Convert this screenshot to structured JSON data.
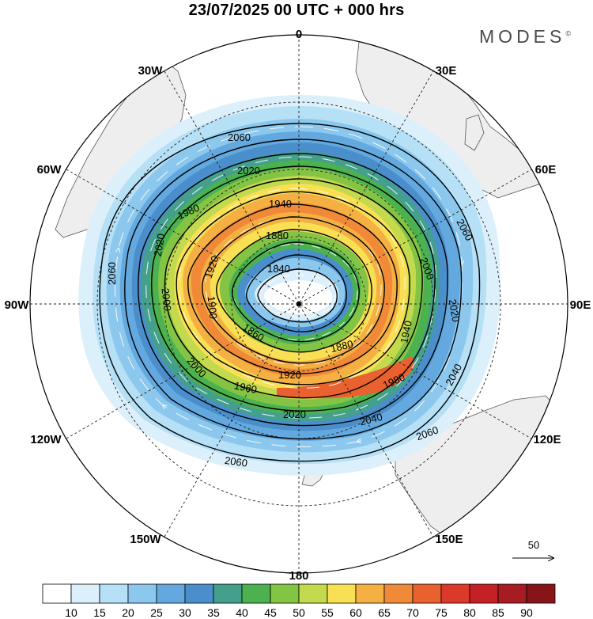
{
  "title": "23/07/2025  00 UTC  + 000 hrs",
  "brand": "MODES",
  "brand_mark": "©",
  "colors": {
    "background": "#ffffff",
    "land": "#eeeeee",
    "coast": "#555555",
    "contour": "#000000",
    "wind_arrow": "#ffffff"
  },
  "longitude_labels": {
    "lon_0": "0",
    "lon_30E": "30E",
    "lon_60E": "60E",
    "lon_90E": "90E",
    "lon_120E": "120E",
    "lon_150E": "150E",
    "lon_180": "180",
    "lon_150W": "150W",
    "lon_120W": "120W",
    "lon_90W": "90W",
    "lon_60W": "60W",
    "lon_30W": "30W"
  },
  "contour_labels": {
    "c2060": "2060",
    "c2040": "2040",
    "c2020": "2020",
    "c2000": "2000",
    "c1980": "1980",
    "c1960": "1960",
    "c1940": "1940",
    "c1920": "1920",
    "c1900": "1900",
    "c1880": "1880",
    "c1860": "1860",
    "c1840": "1840"
  },
  "reference_vector": {
    "label": "50"
  },
  "colorbar": {
    "labels": [
      "10",
      "15",
      "20",
      "25",
      "30",
      "35",
      "40",
      "45",
      "50",
      "55",
      "60",
      "65",
      "70",
      "75",
      "80",
      "85",
      "90"
    ],
    "colors": [
      "#ffffff",
      "#dcf0fb",
      "#b6e0f6",
      "#8cc8ee",
      "#63a9df",
      "#4a8fcb",
      "#44a08c",
      "#4bb24f",
      "#84c444",
      "#c3d94e",
      "#f9df53",
      "#f5b043",
      "#f08a38",
      "#e9612f",
      "#db3a2a",
      "#c42026",
      "#a71b22",
      "#861419"
    ]
  }
}
